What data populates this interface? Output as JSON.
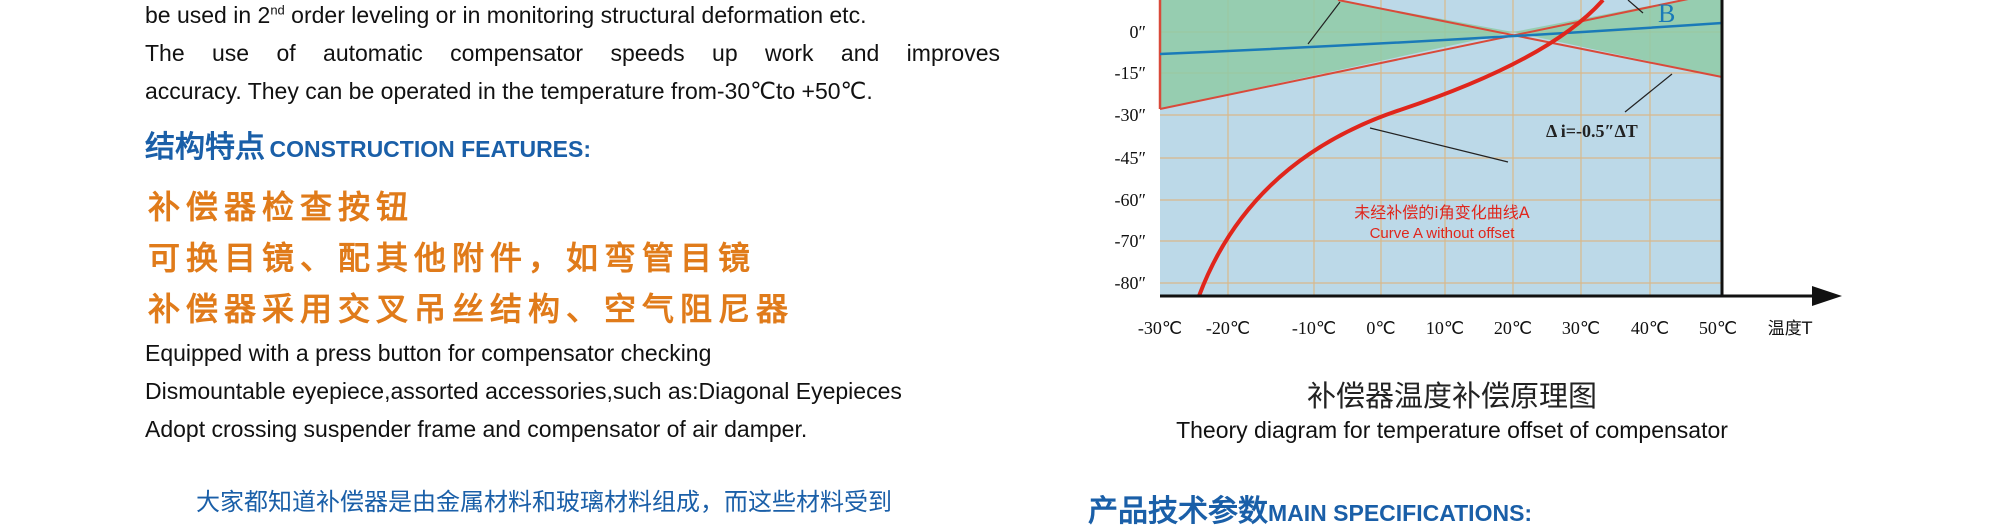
{
  "intro": {
    "line1_pre": "be used in 2",
    "line1_sup": "nd",
    "line1_post": " order leveling or in monitoring structural deformation etc.",
    "line2": "The use of automatic compensator speeds up work and improves",
    "line3": "accuracy. They can be operated in the temperature from-30℃to +50℃."
  },
  "features": {
    "heading_cn": "结构特点",
    "heading_en": "CONSTRUCTION FEATURES:",
    "cn": [
      "补偿器检查按钮",
      "可换目镜、配其他附件，如弯管目镜",
      "补偿器采用交叉吊丝结构、空气阻尼器"
    ],
    "en": [
      "Equipped with a press button for compensator checking",
      "Dismountable eyepiece,assorted accessories,such as:Diagonal Eyepieces",
      "Adopt crossing suspender frame and compensator of air damper."
    ]
  },
  "paragraph": "大家都知道补偿器是由金属材料和玻璃材料组成，而这些材料受到",
  "diagram": {
    "y_labels": [
      "0″",
      "-15″",
      "-30″",
      "-45″",
      "-60″",
      "-70″",
      "-80″"
    ],
    "x_labels": [
      "-30℃",
      "-20℃",
      "-10℃",
      "0℃",
      "10℃",
      "20℃",
      "30℃",
      "40℃",
      "50℃",
      "温度T"
    ],
    "curve_b": "B",
    "slope": "Δ i=-0.5″ΔT",
    "curve_a_cn": "未经补偿的i角变化曲线A",
    "curve_a_en": "Curve A without offset",
    "caption_cn": "补偿器温度补偿原理图",
    "caption_en": "Theory diagram for temperature offset of compensator"
  },
  "specs": {
    "heading_cn": "产品技术参数",
    "heading_en": "MAIN SPECIFICATIONS:"
  }
}
